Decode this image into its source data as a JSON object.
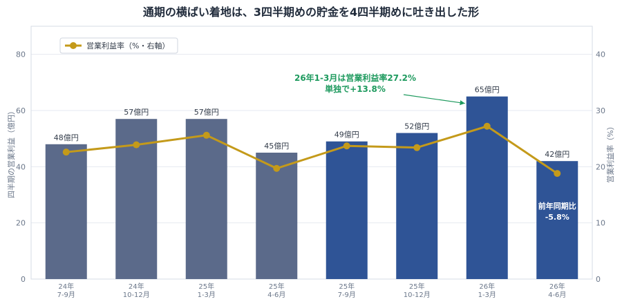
{
  "chart_data": {
    "type": "bar",
    "title": "通期の横ばい着地は、3四半期めの貯金を4四半期めに吐き出した形",
    "categories": [
      [
        "24年",
        "7-9月"
      ],
      [
        "24年",
        "10-12月"
      ],
      [
        "25年",
        "1-3月"
      ],
      [
        "25年",
        "4-6月"
      ],
      [
        "25年",
        "7-9月"
      ],
      [
        "25年",
        "10-12月"
      ],
      [
        "26年",
        "1-3月"
      ],
      [
        "26年",
        "4-6月"
      ]
    ],
    "series": [
      {
        "name": "四半期の営業利益（億円）",
        "axis": "left",
        "values": [
          48,
          57,
          57,
          45,
          49,
          52,
          65,
          42
        ],
        "labels": [
          "48億円",
          "57億円",
          "57億円",
          "45億円",
          "49億円",
          "52億円",
          "65億円",
          "42億円"
        ],
        "colors": [
          "#5b6a8a",
          "#5b6a8a",
          "#5b6a8a",
          "#5b6a8a",
          "#2f5496",
          "#2f5496",
          "#2f5496",
          "#2f5496"
        ]
      },
      {
        "name": "営業利益率（%・右軸）",
        "type": "line",
        "axis": "right",
        "values": [
          22.6,
          23.9,
          25.6,
          19.7,
          23.7,
          23.4,
          27.2,
          18.8
        ],
        "color": "#c49a1a"
      }
    ],
    "ylabel": "四半期の営業利益（億円）",
    "y2label": "営業利益率（%）",
    "ylim": [
      0,
      90
    ],
    "y2lim": [
      0,
      45
    ],
    "yticks": [
      0,
      20,
      40,
      60,
      80
    ],
    "y2ticks": [
      0,
      10,
      20,
      30,
      40
    ],
    "grid": true,
    "legend": "top-left",
    "annotations": [
      {
        "lines": [
          "26年1-3月は営業利益率27.2%",
          "単独で+13.8%"
        ],
        "target_index": 6,
        "color": "#1e9a5e"
      },
      {
        "lines": [
          "前年同期比",
          "-5.8%"
        ],
        "target_index": 7,
        "inside_bar": true,
        "color": "#ffffff"
      }
    ]
  }
}
